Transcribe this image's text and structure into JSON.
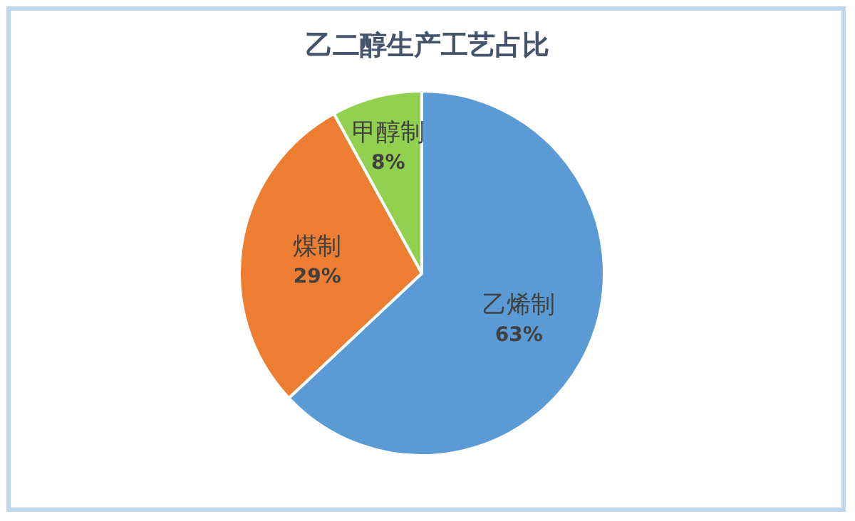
{
  "chart_data": {
    "type": "pie",
    "title": "乙二醇生产工艺占比",
    "categories": [
      "乙烯制",
      "煤制",
      "甲醇制"
    ],
    "values": [
      63,
      29,
      8
    ],
    "value_labels": [
      "63%",
      "29%",
      "8%"
    ],
    "colors": [
      "#5b9bd5",
      "#ed7d31",
      "#92d050"
    ]
  }
}
